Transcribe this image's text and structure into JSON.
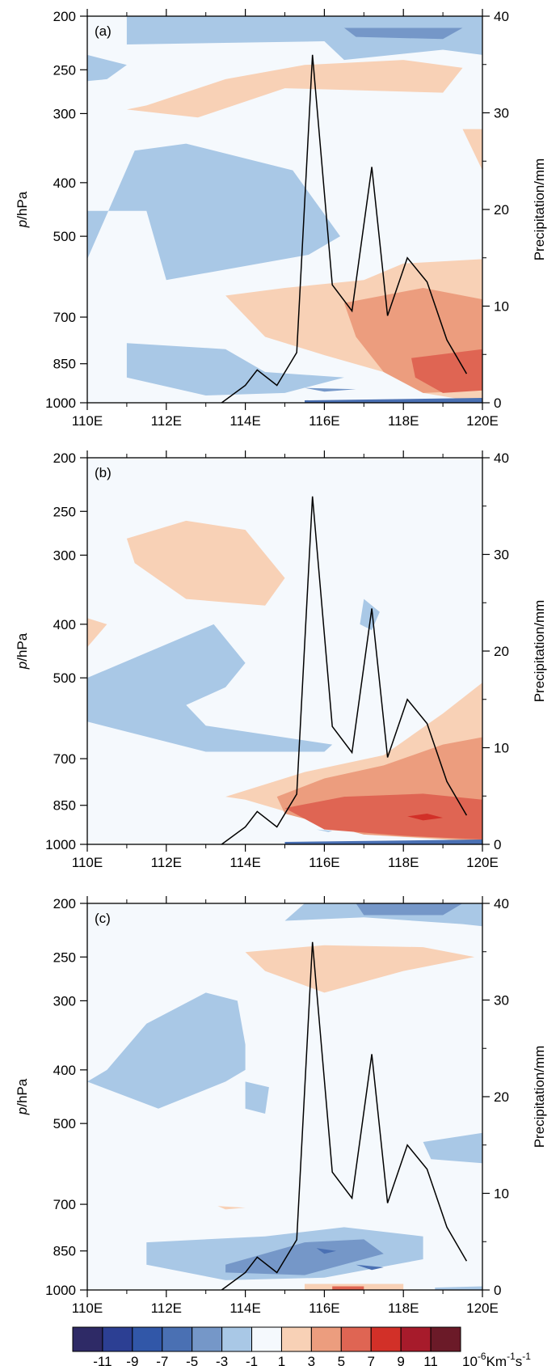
{
  "figure": {
    "colorbar": {
      "bounds": [
        "-11",
        "-9",
        "-7",
        "-5",
        "-3",
        "-1",
        "1",
        "3",
        "5",
        "7",
        "9",
        "11"
      ],
      "colors": [
        "#2e2a66",
        "#2c3f93",
        "#3157a8",
        "#4a70b3",
        "#7597c8",
        "#a9c8e6",
        "#f5f9fd",
        "#f8d1b6",
        "#ec9d7e",
        "#df6553",
        "#d23028",
        "#a71b2b",
        "#6b1a28"
      ],
      "units_prefix": "10",
      "units_exp": "-6",
      "units_main": "Km",
      "units_exp2": "-1",
      "units_s": "s",
      "units_exp3": "-1"
    }
  },
  "chart_data": [
    {
      "type": "heatmap",
      "panel": "(a)",
      "ylabel_italic": "p",
      "ylabel_rest": "/hPa",
      "y2label": "Precipitation/mm",
      "xticks": [
        "110E",
        "112E",
        "114E",
        "116E",
        "118E",
        "120E"
      ],
      "yticks": [
        "200",
        "250",
        "300",
        "400",
        "500",
        "700",
        "850",
        "1000"
      ],
      "y2ticks": [
        "40",
        "30",
        "20",
        "10",
        "0"
      ],
      "xlim": [
        110,
        120
      ],
      "ylim": [
        1000,
        200
      ],
      "y2lim": [
        0,
        40
      ],
      "fill_regions": [
        {
          "level": "-1 to -3",
          "lon": [
            111.0,
            116.0,
            116.5,
            119.0,
            120.0,
            120.0,
            111.0
          ],
          "p": [
            225,
            222,
            240,
            230,
            235,
            200,
            200
          ]
        },
        {
          "level": "-3 to -5",
          "lon": [
            116.5,
            119.5,
            119.0,
            116.8
          ],
          "p": [
            210,
            210,
            220,
            218
          ]
        },
        {
          "level": "-1 to -3",
          "lon": [
            110.0,
            111.0,
            110.5,
            110.0
          ],
          "p": [
            235,
            245,
            260,
            262
          ]
        },
        {
          "level": "1 to 3",
          "lon": [
            111.5,
            113.5,
            115.5,
            118.0,
            119.5,
            119.0,
            115.0,
            112.8,
            111.0
          ],
          "p": [
            290,
            260,
            245,
            240,
            248,
            275,
            270,
            305,
            295
          ]
        },
        {
          "level": "1 to 3",
          "lon": [
            119.5,
            120.0,
            120.0
          ],
          "p": [
            320,
            320,
            380
          ]
        },
        {
          "level": "-1 to -3",
          "lon": [
            111.2,
            112.5,
            115.2,
            116.4,
            115.6,
            112.0,
            111.5,
            110.0,
            110.0,
            111.2
          ],
          "p": [
            350,
            340,
            380,
            500,
            540,
            600,
            450,
            450,
            550,
            350
          ]
        },
        {
          "level": "-1 to -3",
          "lon": [
            111.0,
            113.5,
            114.5,
            116.5,
            115.0,
            113.0,
            111.0
          ],
          "p": [
            780,
            800,
            880,
            900,
            960,
            970,
            900
          ]
        },
        {
          "level": "-3 to -5",
          "lon": [
            115.5,
            116.8,
            116.0
          ],
          "p": [
            940,
            945,
            955
          ]
        },
        {
          "level": "1 to 3",
          "lon": [
            113.5,
            115.0,
            117.0,
            118.0,
            120.0,
            120.0,
            118.5,
            117.5,
            116.0,
            114.5
          ],
          "p": [
            640,
            620,
            600,
            560,
            550,
            1000,
            960,
            880,
            820,
            760
          ]
        },
        {
          "level": "3 to 5",
          "lon": [
            116.5,
            118.5,
            120.0,
            120.0,
            118.5,
            117.5,
            116.8
          ],
          "p": [
            660,
            620,
            650,
            950,
            960,
            880,
            760
          ]
        },
        {
          "level": "5 to 7",
          "lon": [
            118.2,
            120.0,
            120.0,
            119.0,
            118.3
          ],
          "p": [
            830,
            800,
            950,
            960,
            900
          ]
        },
        {
          "level": "-5 to -7",
          "lon": [
            115.5,
            120.0,
            120.0,
            115.5
          ],
          "p": [
            990,
            980,
            1000,
            1000
          ]
        }
      ],
      "precip": {
        "x": [
          113.4,
          114.0,
          114.3,
          114.8,
          115.3,
          115.7,
          116.2,
          116.7,
          117.2,
          117.6,
          118.1,
          118.6,
          119.1,
          119.6
        ],
        "y": [
          0,
          1.8,
          3.4,
          1.8,
          5.2,
          36,
          12.2,
          9.5,
          24.4,
          9,
          15,
          12.5,
          6.5,
          3
        ]
      }
    },
    {
      "type": "heatmap",
      "panel": "(b)",
      "ylabel_italic": "p",
      "ylabel_rest": "/hPa",
      "y2label": "Precipitation/mm",
      "xticks": [
        "110E",
        "112E",
        "114E",
        "116E",
        "118E",
        "120E"
      ],
      "yticks": [
        "200",
        "250",
        "300",
        "400",
        "500",
        "700",
        "850",
        "1000"
      ],
      "y2ticks": [
        "40",
        "30",
        "20",
        "10",
        "0"
      ],
      "xlim": [
        110,
        120
      ],
      "ylim": [
        1000,
        200
      ],
      "y2lim": [
        0,
        40
      ],
      "fill_regions": [
        {
          "level": "1 to 3",
          "lon": [
            111.0,
            112.5,
            114.0,
            115.0,
            114.5,
            112.5,
            111.2
          ],
          "p": [
            280,
            260,
            270,
            330,
            370,
            360,
            310
          ]
        },
        {
          "level": "1 to 3",
          "lon": [
            110.0,
            110.5,
            110.0
          ],
          "p": [
            390,
            400,
            440
          ]
        },
        {
          "level": "-1 to -3",
          "lon": [
            113.2,
            114.0,
            113.5,
            112.5,
            113.0,
            116.2,
            116.0,
            113.0,
            110.0,
            110.0
          ],
          "p": [
            400,
            470,
            520,
            560,
            610,
            660,
            680,
            680,
            600,
            500
          ]
        },
        {
          "level": "-1 to -3",
          "lon": [
            117.0,
            117.4,
            117.2,
            116.9
          ],
          "p": [
            360,
            380,
            410,
            400
          ]
        },
        {
          "level": "1 to 3",
          "lon": [
            113.5,
            115.5,
            117.5,
            119.0,
            120.0,
            120.0,
            117.0,
            114.0
          ],
          "p": [
            820,
            740,
            690,
            580,
            510,
            990,
            960,
            830
          ]
        },
        {
          "level": "3 to 5",
          "lon": [
            114.8,
            116.0,
            117.5,
            119.0,
            120.0,
            120.0,
            117.0,
            115.0
          ],
          "p": [
            820,
            760,
            720,
            660,
            640,
            985,
            960,
            880
          ]
        },
        {
          "level": "5 to 7",
          "lon": [
            115.0,
            116.5,
            118.5,
            120.0,
            120.0,
            118.0,
            116.0
          ],
          "p": [
            860,
            820,
            810,
            830,
            980,
            965,
            940
          ]
        },
        {
          "level": "7 to 9",
          "lon": [
            118.1,
            118.6,
            119.0,
            118.5
          ],
          "p": [
            890,
            880,
            895,
            905
          ]
        },
        {
          "level": "-5 to -7",
          "lon": [
            115.0,
            120.0,
            120.0,
            115.0
          ],
          "p": [
            990,
            980,
            1000,
            1000
          ]
        },
        {
          "level": "-1 to -3",
          "lon": [
            115.8,
            116.2,
            116.1
          ],
          "p": [
            940,
            945,
            950
          ]
        }
      ],
      "precip": {
        "x": [
          113.4,
          114.0,
          114.3,
          114.8,
          115.3,
          115.7,
          116.2,
          116.7,
          117.2,
          117.6,
          118.1,
          118.6,
          119.1,
          119.6
        ],
        "y": [
          0,
          1.8,
          3.4,
          1.8,
          5.2,
          36,
          12.2,
          9.5,
          24.4,
          9,
          15,
          12.5,
          6.5,
          3
        ]
      }
    },
    {
      "type": "heatmap",
      "panel": "(c)",
      "ylabel_italic": "p",
      "ylabel_rest": "/hPa",
      "y2label": "Precipitation/mm",
      "xticks": [
        "110E",
        "112E",
        "114E",
        "116E",
        "118E",
        "120E"
      ],
      "yticks": [
        "200",
        "250",
        "300",
        "400",
        "500",
        "700",
        "850",
        "1000"
      ],
      "y2ticks": [
        "40",
        "30",
        "20",
        "10",
        "0"
      ],
      "xlim": [
        110,
        120
      ],
      "ylim": [
        1000,
        200
      ],
      "y2lim": [
        0,
        40
      ],
      "fill_regions": [
        {
          "level": "-1 to -3",
          "lon": [
            115.0,
            117.0,
            119.5,
            120.0,
            120.0,
            115.5
          ],
          "p": [
            215,
            212,
            218,
            220,
            200,
            200
          ]
        },
        {
          "level": "-3 to -5",
          "lon": [
            116.8,
            119.5,
            119.0,
            117.0
          ],
          "p": [
            200,
            200,
            210,
            210
          ]
        },
        {
          "level": "1 to 3",
          "lon": [
            114.0,
            116.0,
            118.5,
            119.8,
            118.0,
            116.0,
            114.5
          ],
          "p": [
            245,
            238,
            240,
            250,
            265,
            290,
            265
          ]
        },
        {
          "level": "-1 to -3",
          "lon": [
            111.5,
            113.0,
            113.8,
            114.0,
            114.0,
            113.5,
            111.8,
            110.0,
            110.5,
            111.5
          ],
          "p": [
            330,
            290,
            300,
            360,
            400,
            420,
            470,
            420,
            400,
            330
          ]
        },
        {
          "level": "-1 to -3",
          "lon": [
            114.0,
            114.6,
            114.5,
            114.0
          ],
          "p": [
            420,
            430,
            480,
            470
          ]
        },
        {
          "level": "-1 to -3",
          "lon": [
            118.5,
            120.0,
            120.0,
            118.7
          ],
          "p": [
            540,
            520,
            590,
            580
          ]
        },
        {
          "level": "1 to 3",
          "lon": [
            113.3,
            114.0,
            113.5
          ],
          "p": [
            705,
            710,
            715
          ]
        },
        {
          "level": "-1 to -3",
          "lon": [
            111.5,
            114.5,
            116.5,
            118.5,
            118.5,
            116.0,
            113.5,
            111.5
          ],
          "p": [
            820,
            800,
            770,
            800,
            880,
            950,
            960,
            900
          ]
        },
        {
          "level": "-3 to -5",
          "lon": [
            113.5,
            115.5,
            117.0,
            117.5,
            115.5,
            113.5
          ],
          "p": [
            900,
            820,
            810,
            860,
            940,
            930
          ]
        },
        {
          "level": "-5 to -7",
          "lon": [
            115.8,
            116.3,
            116.0
          ],
          "p": [
            840,
            850,
            860
          ]
        },
        {
          "level": "-5 to -7",
          "lon": [
            116.8,
            117.5,
            117.2
          ],
          "p": [
            900,
            910,
            920
          ]
        },
        {
          "level": "1 to 3",
          "lon": [
            115.5,
            118.0,
            118.0,
            115.5
          ],
          "p": [
            975,
            975,
            1000,
            1000
          ]
        },
        {
          "level": "5 to 7",
          "lon": [
            116.2,
            117.0,
            117.0,
            116.2
          ],
          "p": [
            985,
            985,
            1000,
            1000
          ]
        },
        {
          "level": "-1 to -3",
          "lon": [
            118.8,
            120.0,
            120.0,
            118.8
          ],
          "p": [
            990,
            985,
            1000,
            1000
          ]
        }
      ],
      "precip": {
        "x": [
          113.4,
          114.0,
          114.3,
          114.8,
          115.3,
          115.7,
          116.2,
          116.7,
          117.2,
          117.6,
          118.1,
          118.6,
          119.1,
          119.6
        ],
        "y": [
          0,
          1.8,
          3.4,
          1.8,
          5.2,
          36,
          12.2,
          9.5,
          24.4,
          9,
          15,
          12.5,
          6.5,
          3
        ]
      }
    }
  ]
}
